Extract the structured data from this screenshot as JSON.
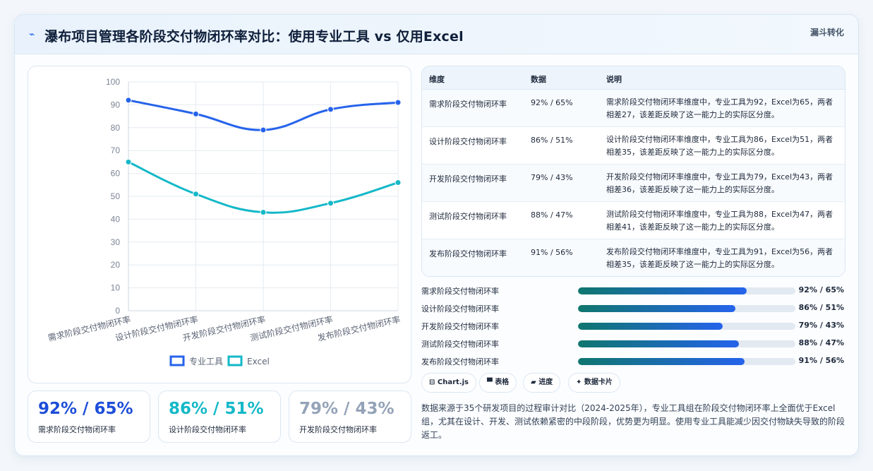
{
  "header": {
    "icon": "trend-icon",
    "title": "瀑布项目管理各阶段交付物闭环率对比：使用专业工具 vs 仅用Excel",
    "tag": "漏斗转化"
  },
  "chart_data": {
    "type": "line",
    "categories": [
      "需求阶段交付物闭环率",
      "设计阶段交付物闭环率",
      "开发阶段交付物闭环率",
      "测试阶段交付物闭环率",
      "发布阶段交付物闭环率"
    ],
    "series": [
      {
        "name": "专业工具",
        "values": [
          92,
          86,
          79,
          88,
          91
        ],
        "color": "#2563eb"
      },
      {
        "name": "Excel",
        "values": [
          65,
          51,
          43,
          47,
          56
        ],
        "color": "#14b8c8"
      }
    ],
    "ylim": [
      0,
      100
    ],
    "yticks": [
      "0",
      "10",
      "20",
      "30",
      "40",
      "50",
      "60",
      "70",
      "80",
      "90",
      "100"
    ],
    "grid": true,
    "legend": "bottom"
  },
  "stats": [
    {
      "value": "92% / 65%",
      "label": "需求阶段交付物闭环率",
      "color": "#1d4ed8"
    },
    {
      "value": "86% / 51%",
      "label": "设计阶段交付物闭环率",
      "color": "#14b8c8"
    },
    {
      "value": "79% / 43%",
      "label": "开发阶段交付物闭环率",
      "color": "#94a3b8"
    }
  ],
  "table": {
    "headers": [
      "维度",
      "数据",
      "说明"
    ],
    "rows": [
      {
        "dim": "需求阶段交付物闭环率",
        "data": "92% / 65%",
        "note": "需求阶段交付物闭环率维度中，专业工具为92，Excel为65，两者相差27，该差距反映了这一能力上的实际区分度。"
      },
      {
        "dim": "设计阶段交付物闭环率",
        "data": "86% / 51%",
        "note": "设计阶段交付物闭环率维度中，专业工具为86，Excel为51，两者相差35，该差距反映了这一能力上的实际区分度。"
      },
      {
        "dim": "开发阶段交付物闭环率",
        "data": "79% / 43%",
        "note": "开发阶段交付物闭环率维度中，专业工具为79，Excel为43，两者相差36，该差距反映了这一能力上的实际区分度。"
      },
      {
        "dim": "测试阶段交付物闭环率",
        "data": "88% / 47%",
        "note": "测试阶段交付物闭环率维度中，专业工具为88，Excel为47，两者相差41，该差距反映了这一能力上的实际区分度。"
      },
      {
        "dim": "发布阶段交付物闭环率",
        "data": "91% / 56%",
        "note": "发布阶段交付物闭环率维度中，专业工具为91，Excel为56，两者相差35，该差距反映了这一能力上的实际区分度。"
      }
    ]
  },
  "progress": [
    {
      "label": "需求阶段交付物闭环率",
      "percent": 0.775,
      "text": "92% / 65%"
    },
    {
      "label": "设计阶段交付物闭环率",
      "percent": 0.725,
      "text": "86% / 51%"
    },
    {
      "label": "开发阶段交付物闭环率",
      "percent": 0.665,
      "text": "79% / 43%"
    },
    {
      "label": "测试阶段交付物闭环率",
      "percent": 0.74,
      "text": "88% / 47%"
    },
    {
      "label": "发布阶段交付物闭环率",
      "percent": 0.765,
      "text": "91% / 56%"
    }
  ],
  "chips": [
    {
      "icon": "chart-icon",
      "glyph": "⊟",
      "label": "Chart.js"
    },
    {
      "icon": "table-icon",
      "glyph": "▀",
      "label": "表格"
    },
    {
      "icon": "progress-icon",
      "glyph": "▰",
      "label": "进度"
    },
    {
      "icon": "card-icon",
      "glyph": "✦",
      "label": "数据卡片"
    }
  ],
  "footnote": "数据来源于35个研发项目的过程审计对比（2024-2025年），专业工具组在阶段交付物闭环率上全面优于Excel组，尤其在设计、开发、测试依赖紧密的中段阶段，优势更为明显。使用专业工具能减少因交付物缺失导致的阶段返工。"
}
